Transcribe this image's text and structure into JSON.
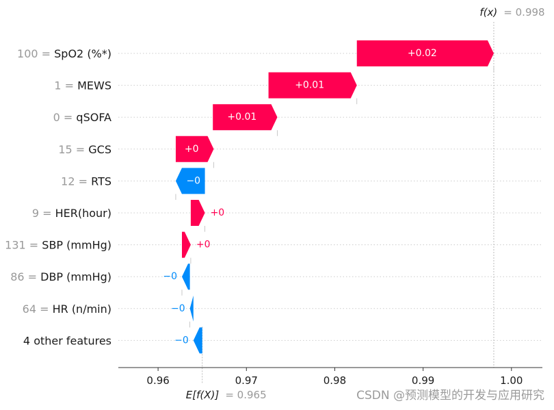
{
  "chart_data": {
    "type": "waterfall",
    "title": "",
    "base_value": 0.965,
    "base_label": "E[f(X)]",
    "base_value_text": "= 0.965",
    "output_value": 0.998,
    "output_label": "f(x)",
    "output_value_text": "= 0.998",
    "xlim": [
      0.9555,
      1.0035
    ],
    "x_ticks": [
      0.96,
      0.97,
      0.98,
      0.99,
      1.0
    ],
    "x_tick_labels": [
      "0.96",
      "0.97",
      "0.98",
      "0.99",
      "1.00"
    ],
    "features": [
      {
        "value_text": "100 =",
        "name": "SpO2 (%*)",
        "start": 0.9825,
        "end": 0.998,
        "label": "+0.02",
        "sign": "positive"
      },
      {
        "value_text": "1 =",
        "name": "MEWS",
        "start": 0.9725,
        "end": 0.9825,
        "label": "+0.01",
        "sign": "positive"
      },
      {
        "value_text": "0 =",
        "name": "qSOFA",
        "start": 0.9662,
        "end": 0.9735,
        "label": "+0.01",
        "sign": "positive"
      },
      {
        "value_text": "15 =",
        "name": "GCS",
        "start": 0.962,
        "end": 0.9663,
        "label": "+0",
        "sign": "positive"
      },
      {
        "value_text": "12 =",
        "name": "RTS",
        "start": 0.9653,
        "end": 0.962,
        "label": "−0",
        "sign": "negative"
      },
      {
        "value_text": "9 =",
        "name": "HER(hour)",
        "start": 0.9637,
        "end": 0.9653,
        "label": "+0",
        "sign": "positive"
      },
      {
        "value_text": "131 =",
        "name": "SBP (mmHg)",
        "start": 0.9627,
        "end": 0.9637,
        "label": "+0",
        "sign": "positive"
      },
      {
        "value_text": "86 =",
        "name": "DBP (mmHg)",
        "start": 0.9636,
        "end": 0.9627,
        "label": "−0",
        "sign": "negative"
      },
      {
        "value_text": "64 =",
        "name": "HR (n/min)",
        "start": 0.964,
        "end": 0.9636,
        "label": "−0",
        "sign": "negative"
      },
      {
        "value_text": "",
        "name": "4 other features",
        "start": 0.965,
        "end": 0.964,
        "label": "−0",
        "sign": "negative"
      }
    ],
    "colors": {
      "positive": "#ff0051",
      "negative": "#008bfb",
      "label_inside": "#ffffff",
      "reference_line": "#bbbbbb",
      "row_grid": "#cccccc"
    }
  },
  "watermark": "CSDN @预测模型的开发与应用研究"
}
